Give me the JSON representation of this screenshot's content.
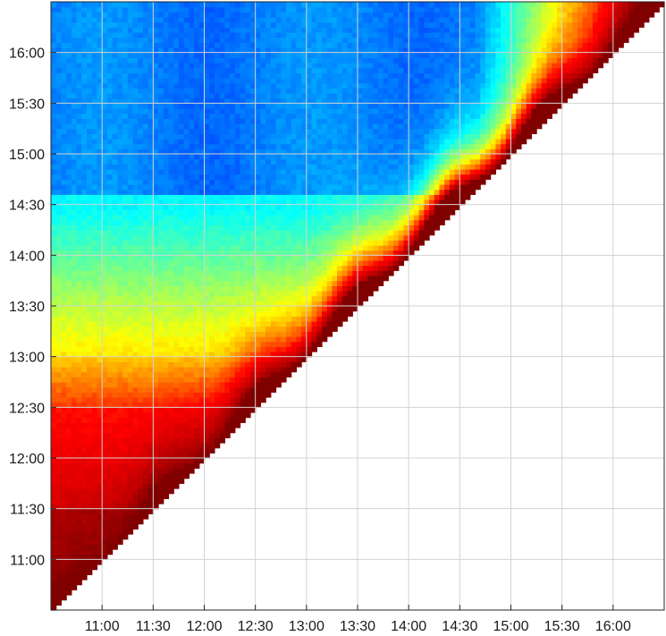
{
  "chart_data": {
    "type": "heatmap",
    "title": "",
    "xlabel": "",
    "ylabel": "",
    "time_range": [
      "10:30",
      "16:30"
    ],
    "x_ticks": [
      "11:00",
      "11:30",
      "12:00",
      "12:30",
      "13:00",
      "13:30",
      "14:00",
      "14:30",
      "15:00",
      "15:30",
      "16:00"
    ],
    "y_ticks": [
      "11:00",
      "11:30",
      "12:00",
      "12:30",
      "13:00",
      "13:30",
      "14:00",
      "14:30",
      "15:00",
      "15:30",
      "16:00"
    ],
    "grid": true,
    "colormap": "jet",
    "upper_triangle_empty": true,
    "colormap_stops": [
      "#00008f",
      "#0000ff",
      "#00ffff",
      "#ffff00",
      "#ff0000",
      "#800000"
    ],
    "background_fill": "#ffffff",
    "grid_color": "#d3d3d3",
    "border_color": "#262626"
  }
}
